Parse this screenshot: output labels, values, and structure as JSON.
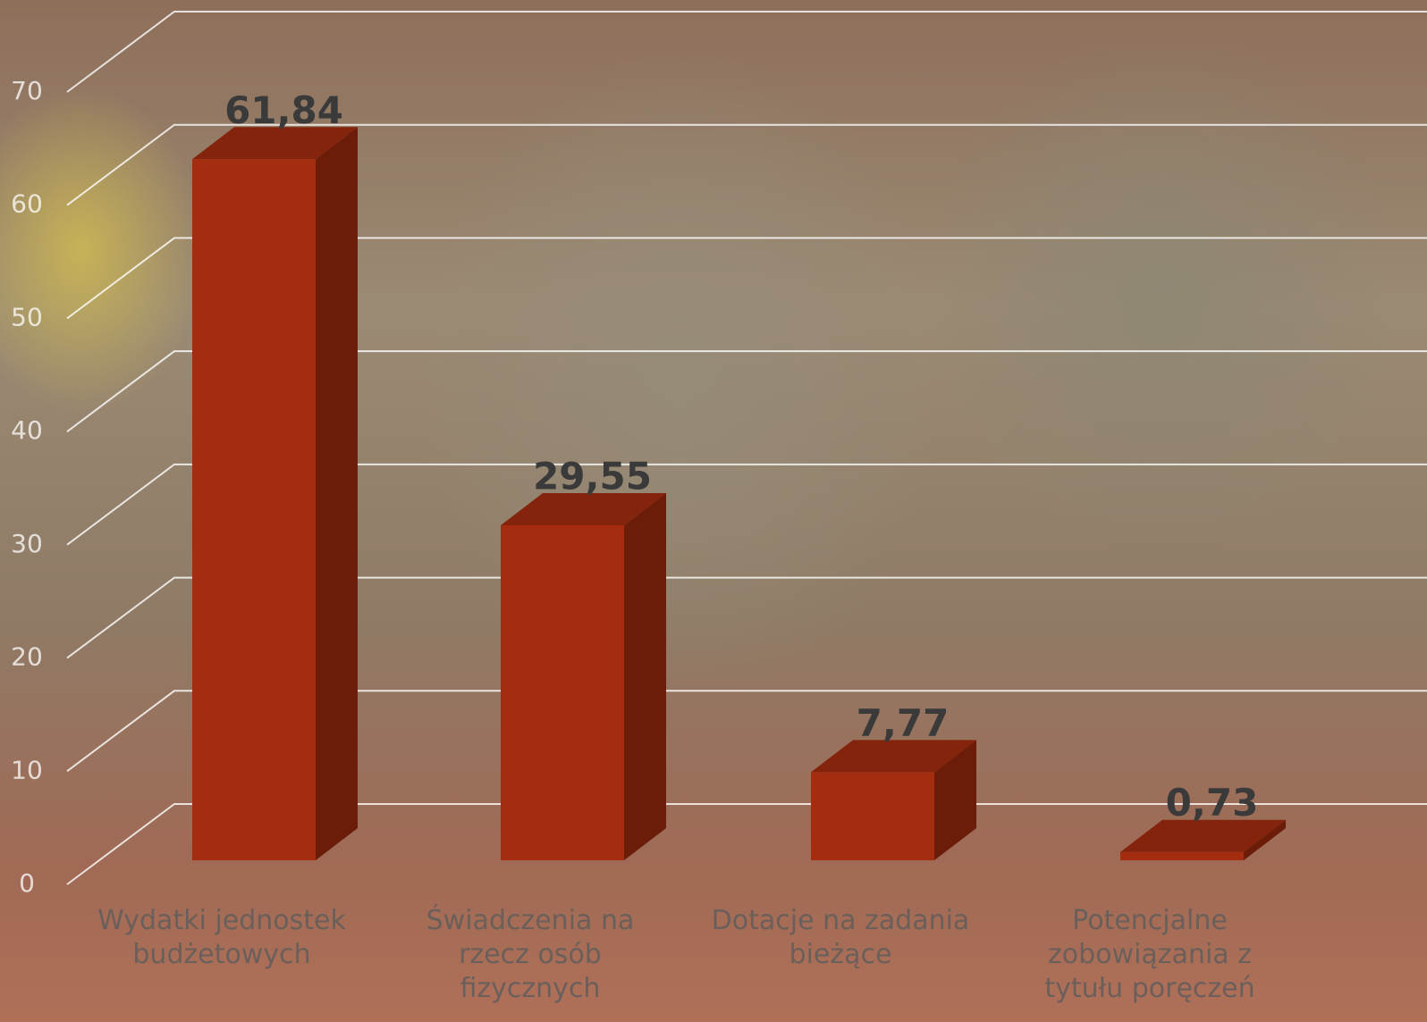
{
  "chart_data": {
    "type": "bar3d",
    "categories": [
      "Wydatki jednostek budżetowych",
      "Świadczenia na rzecz osób fizycznych",
      "Dotacje na zadania bieżące",
      "Potencjalne zobowiązania z tytułu poręczeń"
    ],
    "values": [
      61.84,
      29.55,
      7.77,
      0.73
    ],
    "value_labels": [
      "61,84",
      "29,55",
      "7,77",
      "0,73"
    ],
    "color": "#a52d0f",
    "ylim": [
      0,
      70
    ],
    "yticks": [
      0,
      10,
      20,
      30,
      40,
      50,
      60,
      70
    ],
    "grid": true
  }
}
